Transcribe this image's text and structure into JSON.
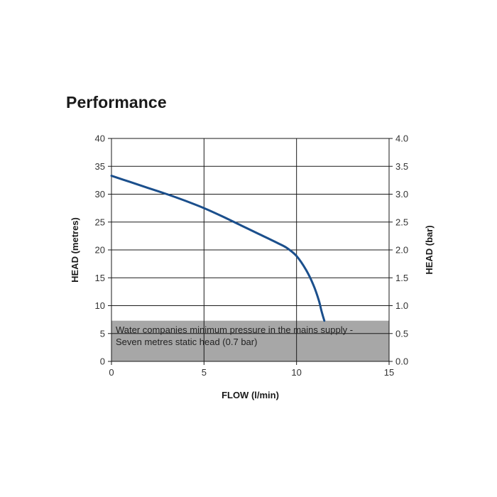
{
  "section_title": "Performance",
  "chart_data": {
    "type": "line",
    "title": "",
    "xlabel": "FLOW (l/min)",
    "ylabel": "HEAD (metres)",
    "ylabel_right": "HEAD (bar)",
    "xlim": [
      0,
      15
    ],
    "ylim": [
      0,
      40
    ],
    "ylim_right": [
      0.0,
      4.0
    ],
    "x_ticks": [
      "0",
      "5",
      "10",
      "15"
    ],
    "y_ticks": [
      "0",
      "5",
      "10",
      "15",
      "20",
      "25",
      "30",
      "35",
      "40"
    ],
    "y_ticks_right": [
      "0.0",
      "0.5",
      "1.0",
      "1.5",
      "2.0",
      "2.5",
      "3.0",
      "3.5",
      "4.0"
    ],
    "grid": true,
    "series": [
      {
        "x": [
          0,
          1,
          2,
          3,
          4,
          5,
          6,
          7,
          8,
          9,
          9.5,
          10,
          10.5,
          10.9,
          11.2,
          11.35,
          11.5
        ],
        "values": [
          33.3,
          32.2,
          31.1,
          30.0,
          28.8,
          27.5,
          26.0,
          24.4,
          22.8,
          21.2,
          20.3,
          18.9,
          16.5,
          13.8,
          11.0,
          9.0,
          7.3
        ]
      }
    ],
    "shaded_band": {
      "ymin": 0,
      "ymax": 7.3,
      "text_line_1": "Water companies minimum pressure in the mains supply -",
      "text_line_2": "Seven metres static head (0.7 bar)"
    },
    "colors": {
      "line": "#1b4f8c",
      "band": "#a7a7a7",
      "grid": "#1a1a1a"
    }
  }
}
